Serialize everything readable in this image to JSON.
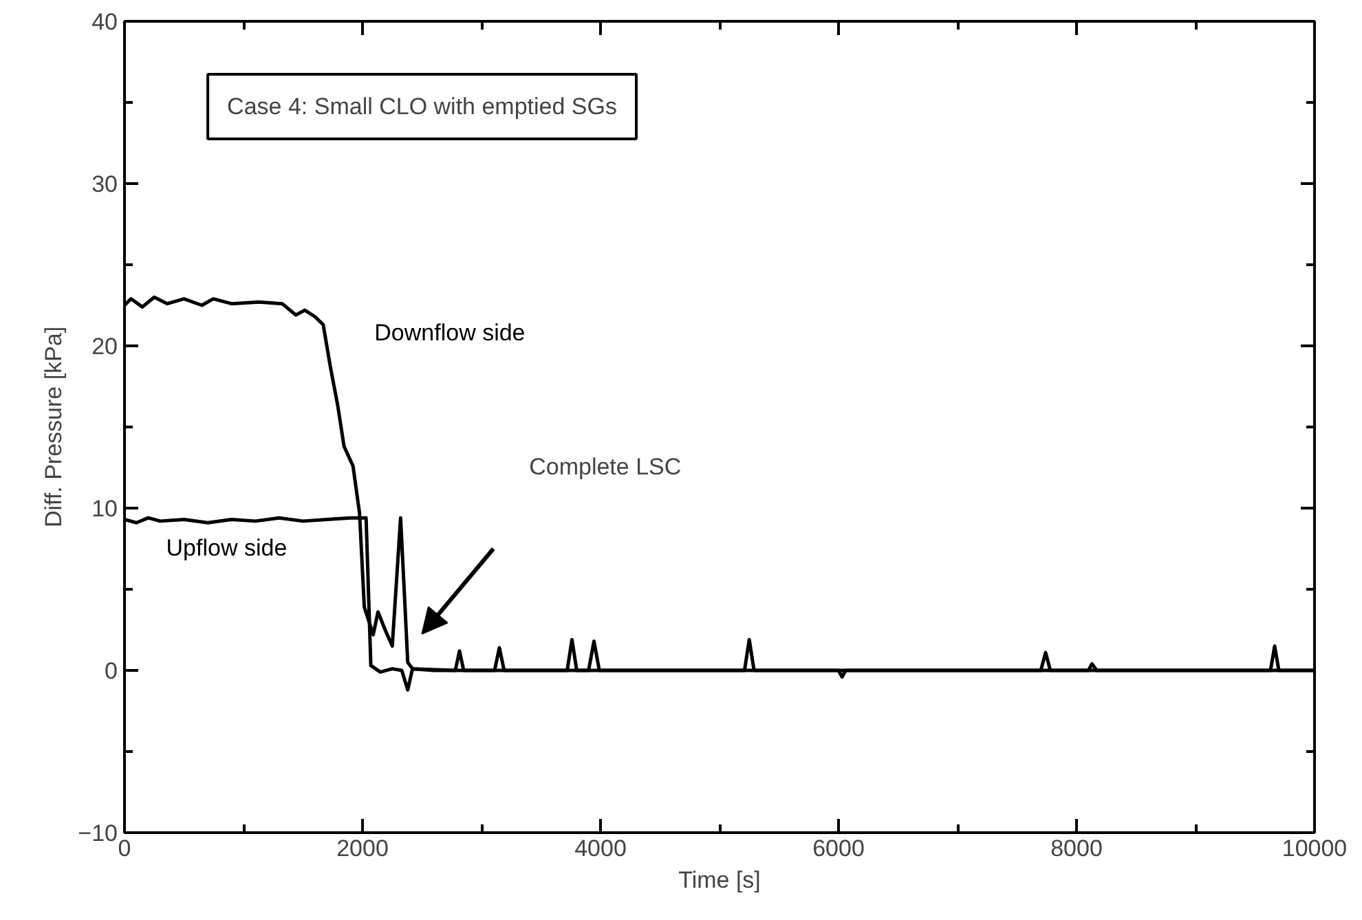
{
  "chart_data": {
    "type": "line",
    "xlabel": "Time [s]",
    "ylabel": "Diff. Pressure [kPa]",
    "xlim": [
      0,
      10000
    ],
    "ylim": [
      -10,
      40
    ],
    "xticks": [
      0,
      2000,
      4000,
      6000,
      8000,
      10000
    ],
    "yticks": [
      -10,
      0,
      10,
      20,
      30,
      40
    ],
    "grid": false,
    "annotations": [
      "Case 4: Small CLO with emptied SGs",
      "Complete LSC"
    ],
    "series": [
      {
        "name": "Downflow side",
        "color": "#000000",
        "x": [
          0,
          54,
          150,
          250,
          360,
          500,
          650,
          746,
          900,
          1130,
          1325,
          1440,
          1515,
          1600,
          1670,
          1730,
          1790,
          1845,
          1920,
          1975,
          2015,
          2090,
          2130,
          2190,
          2250,
          2290,
          2320,
          2350,
          2380,
          2420,
          2780,
          2815,
          2850,
          3110,
          3150,
          3190,
          3720,
          3760,
          3800,
          3900,
          3945,
          3990,
          5210,
          5250,
          5290,
          7700,
          7740,
          7780,
          8100,
          8130,
          8170,
          9630,
          9665,
          9700,
          10000
        ],
        "values": [
          22.5,
          22.9,
          22.4,
          23,
          22.6,
          22.9,
          22.5,
          22.9,
          22.6,
          22.7,
          22.6,
          21.9,
          22.2,
          21.8,
          21.3,
          18.7,
          16.4,
          13.8,
          12.6,
          9.7,
          3.9,
          2.2,
          3.6,
          2.5,
          1.5,
          6,
          9.4,
          5,
          0.5,
          0.1,
          0,
          1.2,
          0,
          0,
          1.4,
          0,
          0,
          1.9,
          0,
          0,
          1.8,
          0,
          0,
          1.9,
          0,
          0,
          1.1,
          0,
          0,
          0.4,
          0,
          0,
          1.5,
          0,
          0
        ]
      },
      {
        "name": "Upflow side",
        "color": "#000000",
        "x": [
          0,
          100,
          200,
          300,
          500,
          700,
          900,
          1100,
          1300,
          1500,
          1700,
          1900,
          2030,
          2070,
          2150,
          2250,
          2330,
          2380,
          2420,
          2600,
          4000,
          6000,
          6030,
          6060,
          8000,
          10000
        ],
        "values": [
          9.3,
          9.1,
          9.4,
          9.2,
          9.3,
          9.1,
          9.3,
          9.2,
          9.4,
          9.2,
          9.3,
          9.4,
          9.4,
          0.3,
          -0.1,
          0.1,
          0,
          -1.2,
          0.1,
          0,
          0,
          0,
          -0.4,
          0,
          0,
          0
        ]
      }
    ]
  }
}
